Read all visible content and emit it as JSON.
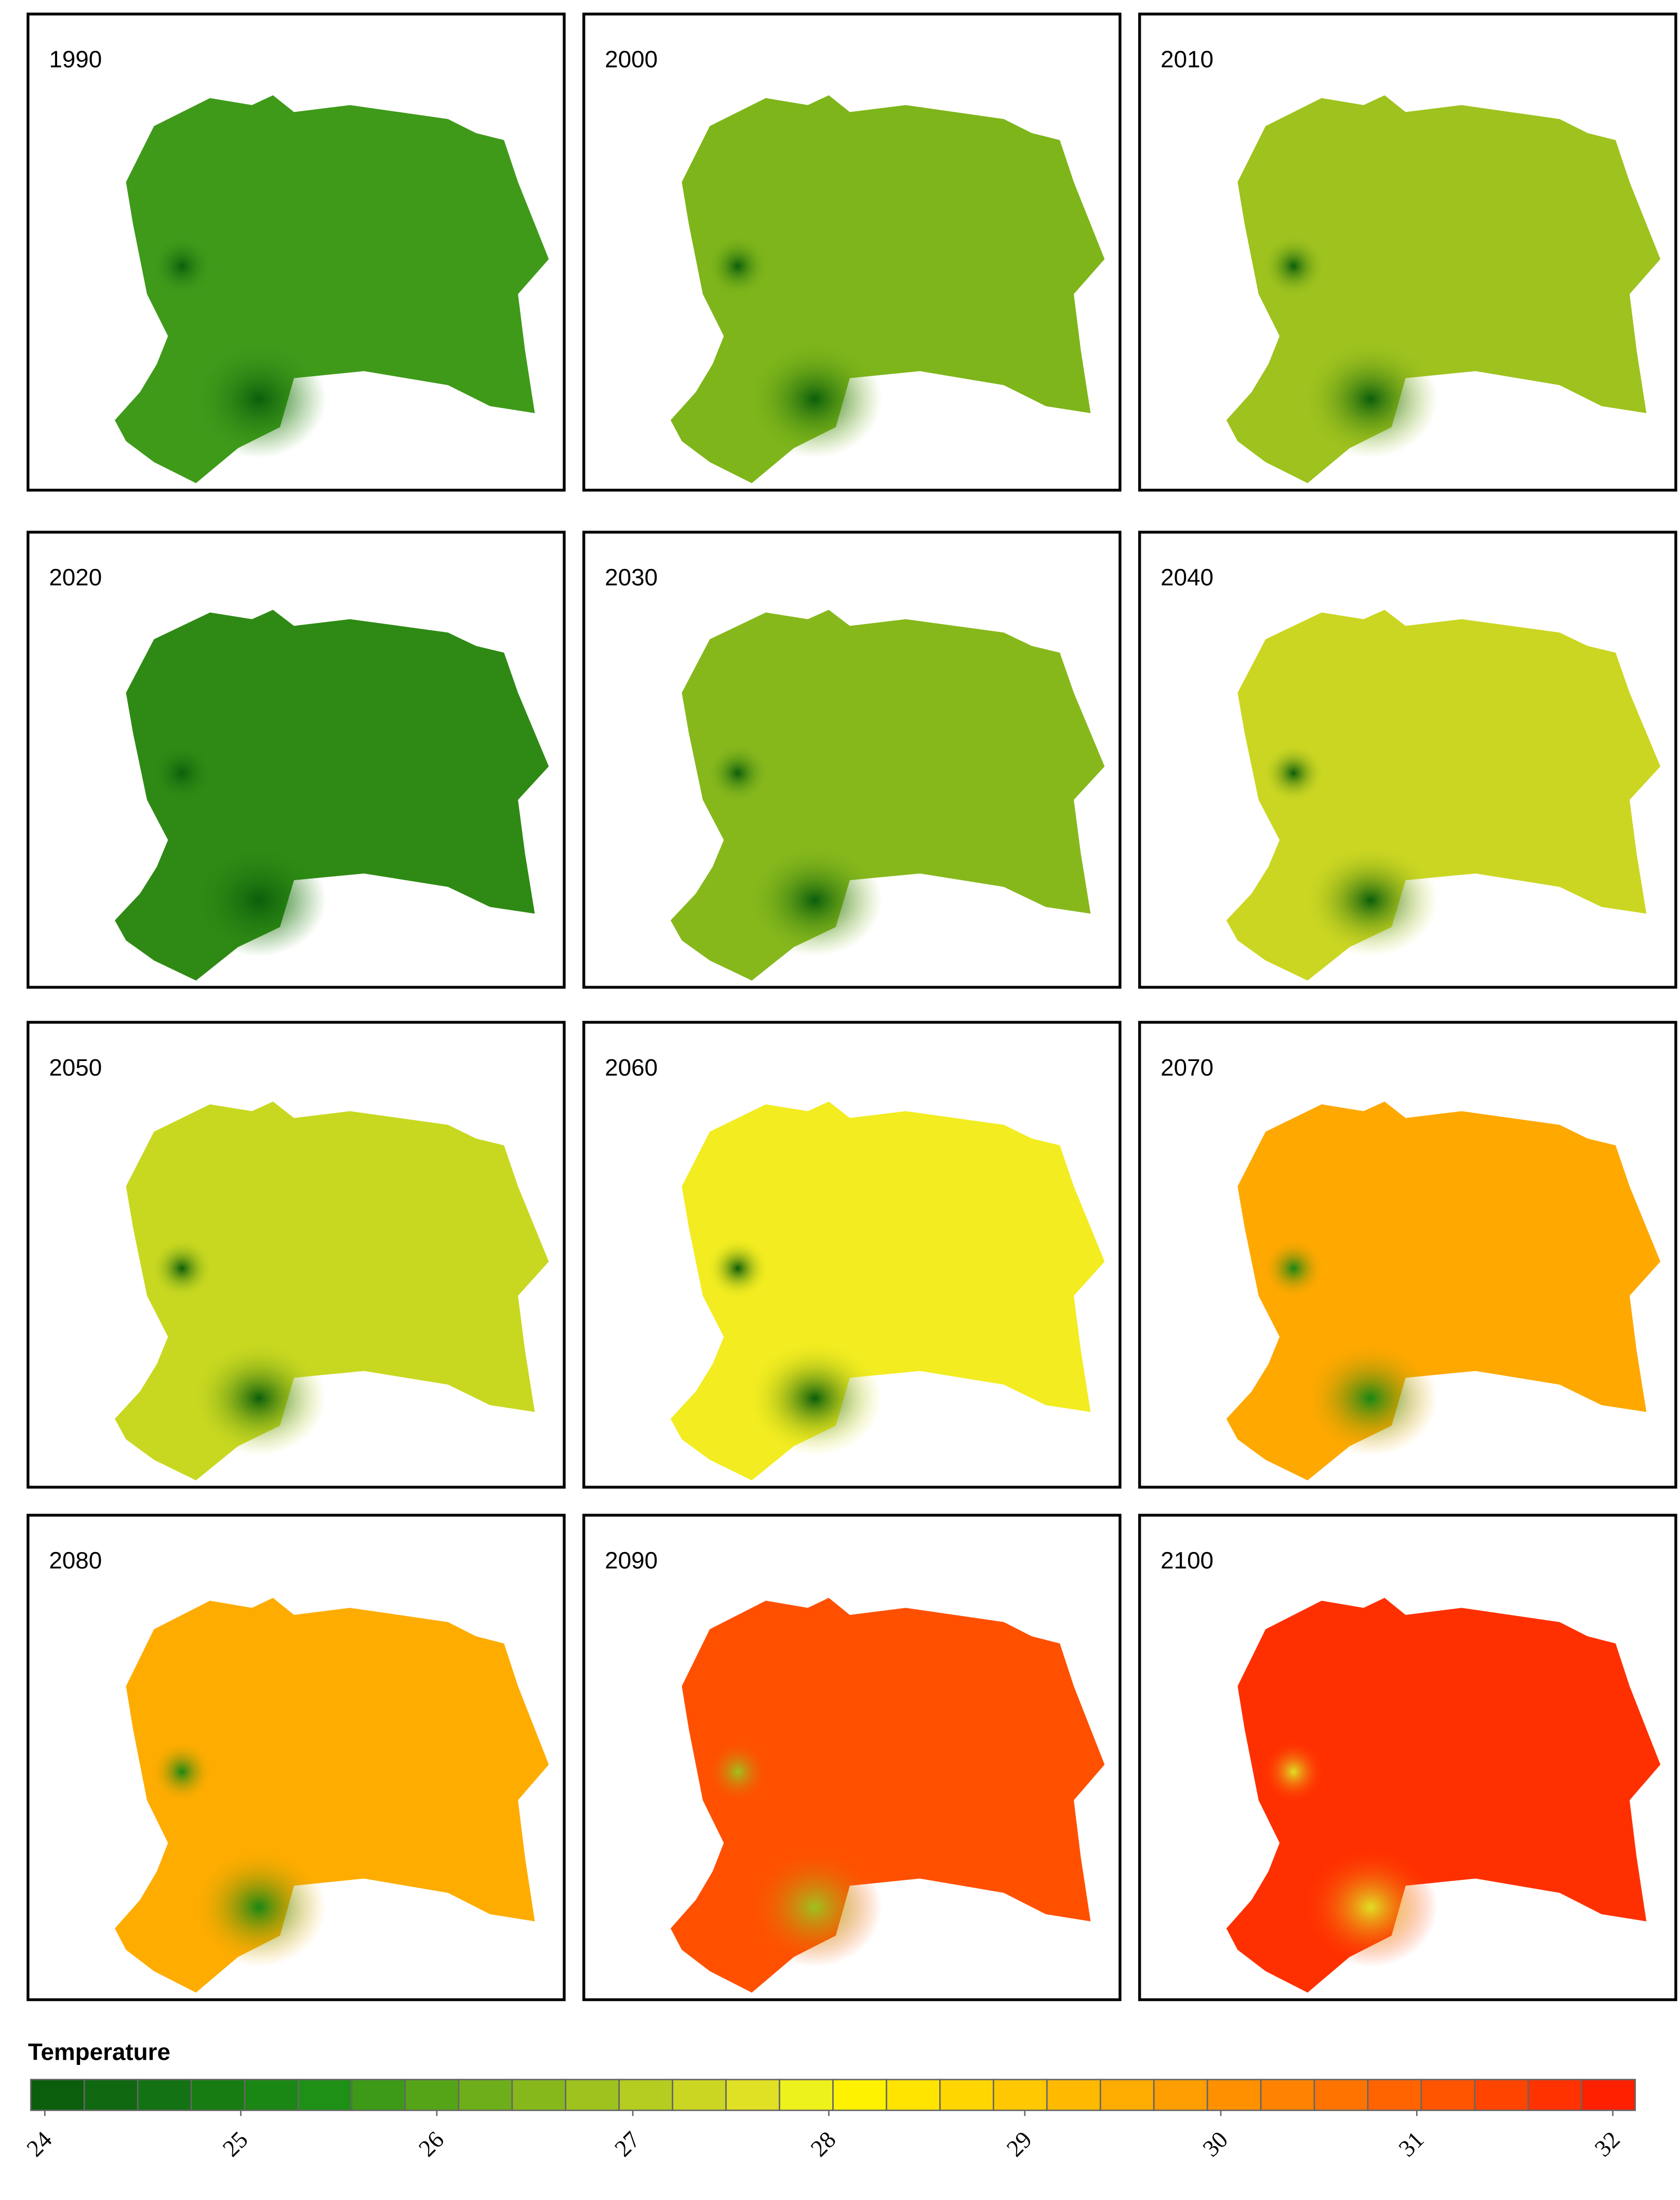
{
  "panels": [
    {
      "label": "1990",
      "color": "#3f9a1a",
      "spot_color": "#0b5e0b"
    },
    {
      "label": "2000",
      "color": "#7eb51a",
      "spot_color": "#0b5e0b"
    },
    {
      "label": "2010",
      "color": "#9ec21e",
      "spot_color": "#0b5e0b"
    },
    {
      "label": "2020",
      "color": "#2e8a14",
      "spot_color": "#0b5e0b"
    },
    {
      "label": "2030",
      "color": "#86b81c",
      "spot_color": "#0b5e0b"
    },
    {
      "label": "2040",
      "color": "#cbd622",
      "spot_color": "#0b5e0b"
    },
    {
      "label": "2050",
      "color": "#c8d820",
      "spot_color": "#0b5e0b"
    },
    {
      "label": "2060",
      "color": "#f2ec20",
      "spot_color": "#0b5e0b"
    },
    {
      "label": "2070",
      "color": "#ffa800",
      "spot_color": "#1a8614"
    },
    {
      "label": "2080",
      "color": "#ffac00",
      "spot_color": "#1a8614"
    },
    {
      "label": "2090",
      "color": "#ff5000",
      "spot_color": "#9ec21e"
    },
    {
      "label": "2100",
      "color": "#ff3000",
      "spot_color": "#e0e024"
    }
  ],
  "legend": {
    "title": "Temperature",
    "ticks": [
      24,
      25,
      26,
      27,
      28,
      29,
      30,
      31,
      32
    ],
    "colors": [
      "#0b5e0b",
      "#106810",
      "#137213",
      "#177c12",
      "#1a8614",
      "#1f9016",
      "#3c9a16",
      "#55a418",
      "#6dae1a",
      "#86b81c",
      "#9ec21e",
      "#b5cc20",
      "#cbd622",
      "#e0e024",
      "#eef21c",
      "#fff200",
      "#ffe400",
      "#ffd600",
      "#ffc800",
      "#ffba00",
      "#ffac00",
      "#ff9e00",
      "#ff9000",
      "#ff8200",
      "#ff7400",
      "#ff6400",
      "#ff5400",
      "#ff4400",
      "#ff3200",
      "#ff2000"
    ]
  }
}
